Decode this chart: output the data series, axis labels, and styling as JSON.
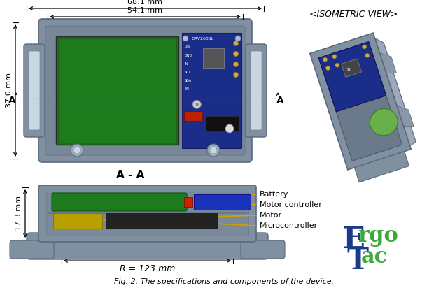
{
  "title_text": "Fig. 2. The specifications and components of the device.",
  "isometric_label": "<ISOMETRIC VIEW>",
  "section_label": "A - A",
  "dim_68_1": "68.1 mm",
  "dim_54_1": "54.1 mm",
  "dim_37_0": "37.0 mm",
  "dim_17_3": "17.3 mm",
  "dim_R": "R = 123 mm",
  "label_A_left": "A",
  "label_A_right": "A",
  "components": [
    "Battery",
    "Motor controller",
    "Motor",
    "Microcontroller"
  ],
  "arrow_color": "#D4A000",
  "bg_color": "#ffffff",
  "text_color": "#000000",
  "ergo_blue": "#1a3a8c",
  "ergo_green": "#3aaa3a",
  "font_size_dims": 8
}
